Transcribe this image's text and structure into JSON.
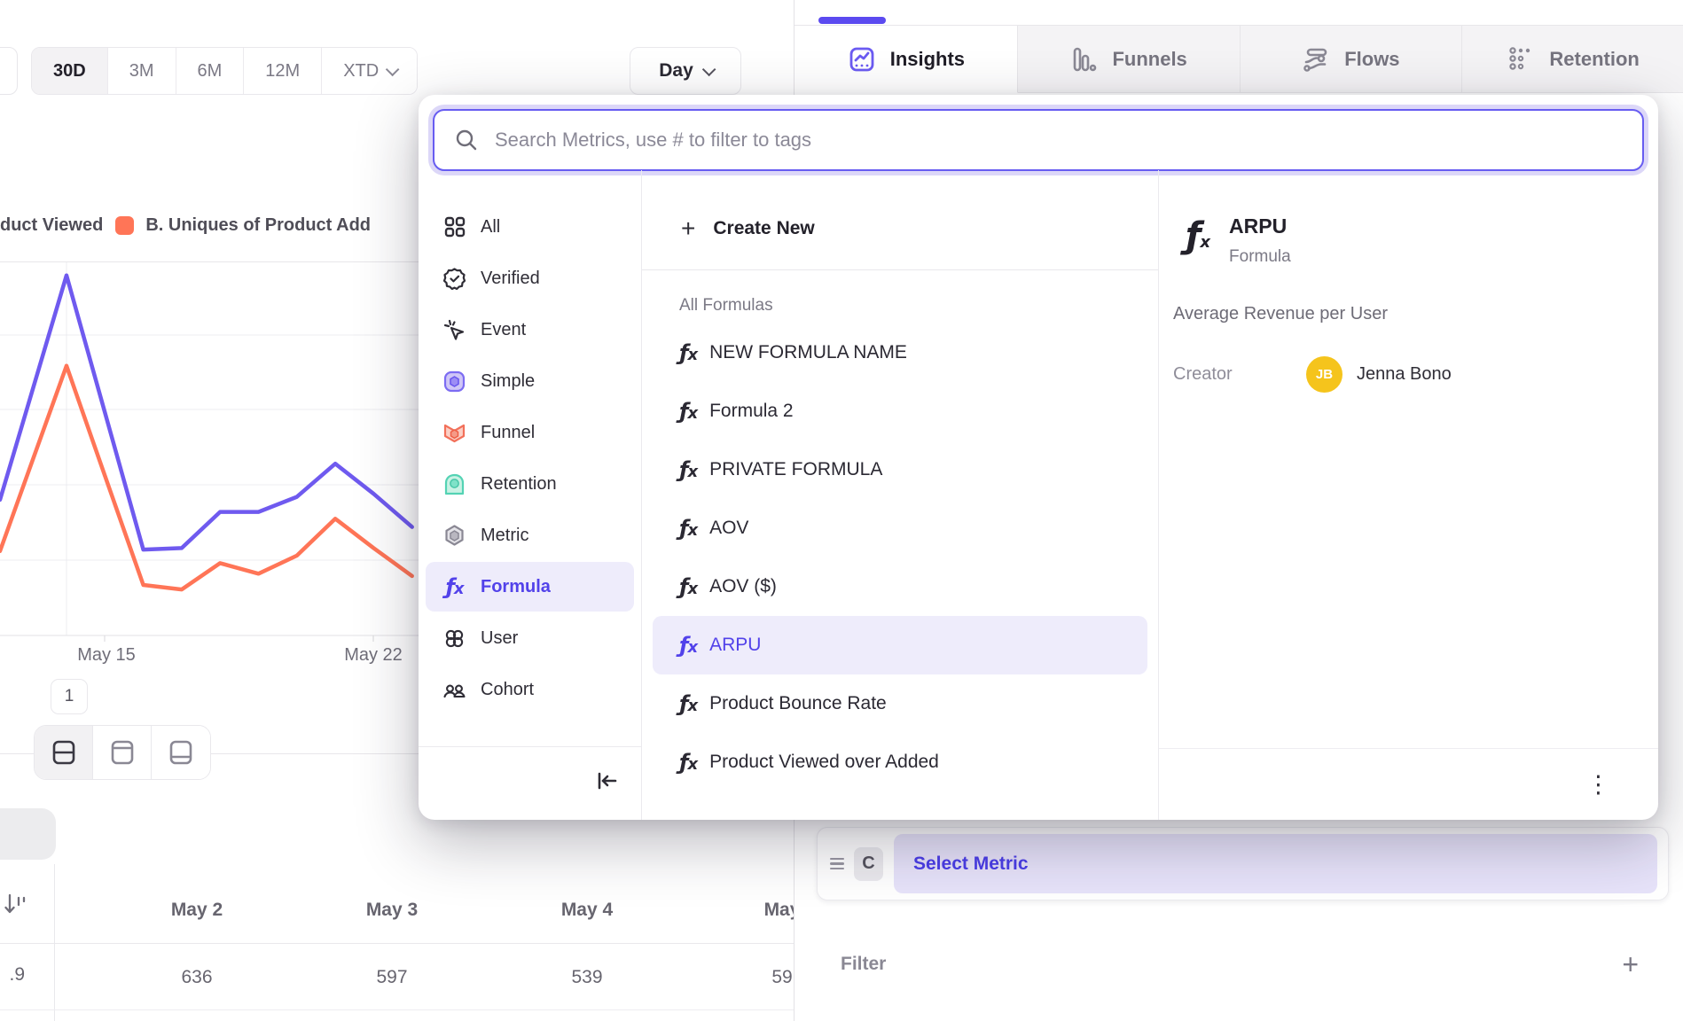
{
  "toolbar": {
    "ranges": [
      {
        "label": "30D",
        "active": true
      },
      {
        "label": "3M",
        "active": false
      },
      {
        "label": "6M",
        "active": false
      },
      {
        "label": "12M",
        "active": false
      },
      {
        "label": "XTD",
        "active": false,
        "chevron": true
      }
    ],
    "granularity": {
      "label": "Day"
    }
  },
  "tabs": [
    {
      "label": "Insights",
      "active": true
    },
    {
      "label": "Funnels",
      "active": false
    },
    {
      "label": "Flows",
      "active": false
    },
    {
      "label": "Retention",
      "active": false
    }
  ],
  "legend": [
    {
      "label": "duct Viewed",
      "truncated": true
    },
    {
      "label": "B. Uniques of Product Add",
      "truncated": true,
      "swatch_color": "#ff7557"
    }
  ],
  "chart_data": {
    "type": "line",
    "x": [
      "May 13",
      "May 14",
      "May 15",
      "May 16",
      "May 17",
      "May 18",
      "May 19",
      "May 20",
      "May 21",
      "May 22",
      "May 23"
    ],
    "x_ticks_visible": [
      "May 15",
      "May 22"
    ],
    "series": [
      {
        "name": "duct Viewed",
        "color": "#6f5aef",
        "values": [
          1530,
          2390,
          1480,
          570,
          580,
          820,
          820,
          920,
          1140,
          940,
          720
        ]
      },
      {
        "name": "B. Uniques of Product Add",
        "color": "#ff7557",
        "values": [
          1080,
          1790,
          1060,
          335,
          305,
          480,
          410,
          530,
          775,
          580,
          395
        ]
      }
    ],
    "ylim": [
      0,
      2500
    ],
    "y_gridline_step": 500,
    "y_axis_labels_visible": false,
    "grid": true,
    "legend_position": "top-left",
    "values_estimated_from_pixels": true
  },
  "pagination": {
    "page": "1"
  },
  "table": {
    "frozen_value": ".9",
    "columns": [
      {
        "header": "May 2",
        "value": "636"
      },
      {
        "header": "May 3",
        "value": "597"
      },
      {
        "header": "May 4",
        "value": "539"
      },
      {
        "header": "May",
        "value": "59"
      }
    ]
  },
  "picker": {
    "search_placeholder": "Search Metrics, use # to filter to tags",
    "sidebar": [
      {
        "label": "All"
      },
      {
        "label": "Verified"
      },
      {
        "label": "Event"
      },
      {
        "label": "Simple"
      },
      {
        "label": "Funnel"
      },
      {
        "label": "Retention"
      },
      {
        "label": "Metric"
      },
      {
        "label": "Formula",
        "active": true
      },
      {
        "label": "User"
      },
      {
        "label": "Cohort"
      }
    ],
    "create_new_label": "Create New",
    "section_label": "All Formulas",
    "formulas": [
      {
        "label": "NEW FORMULA NAME",
        "active": false
      },
      {
        "label": "Formula 2",
        "active": false
      },
      {
        "label": "PRIVATE FORMULA",
        "active": false
      },
      {
        "label": "AOV",
        "active": false
      },
      {
        "label": "AOV ($)",
        "active": false
      },
      {
        "label": "ARPU",
        "active": true
      },
      {
        "label": "Product Bounce Rate",
        "active": false
      },
      {
        "label": "Product Viewed over Added",
        "active": false
      }
    ],
    "detail": {
      "title": "ARPU",
      "type": "Formula",
      "description": "Average Revenue per User",
      "creator_label": "Creator",
      "creator_initials": "JB",
      "creator_name": "Jenna Bono",
      "avatar_color": "#f5c41c"
    }
  },
  "builder": {
    "step_letter": "C",
    "select_metric_label": "Select Metric",
    "filter_label": "Filter"
  },
  "colors": {
    "accent_purple": "#5b4af0",
    "accent_light": "#eeecfb",
    "line_purple": "#6f5aef",
    "line_coral": "#ff7557",
    "avatar_yellow": "#f5c41c"
  }
}
